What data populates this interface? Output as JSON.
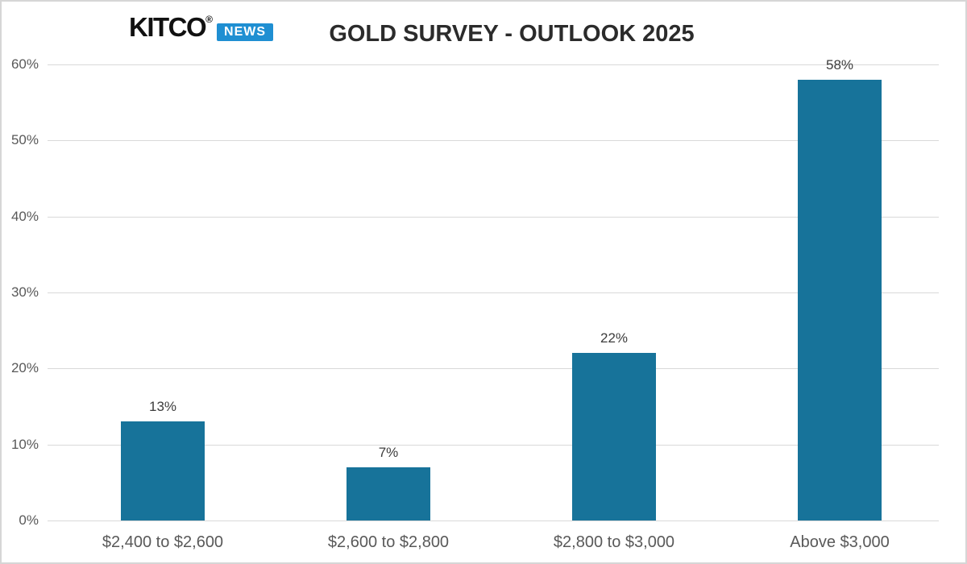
{
  "logo": {
    "brand": "KITCO",
    "registered": "®",
    "news": "NEWS",
    "news_bg": "#1f8fd2",
    "brand_color": "#111111"
  },
  "chart_data": {
    "type": "bar",
    "title": "GOLD SURVEY - OUTLOOK 2025",
    "categories": [
      "$2,400 to $2,600",
      "$2,600 to $2,800",
      "$2,800 to $3,000",
      "Above $3,000"
    ],
    "values": [
      13,
      7,
      22,
      58
    ],
    "data_labels": [
      "13%",
      "7%",
      "22%",
      "58%"
    ],
    "y_ticks": [
      {
        "value": 0,
        "label": "0%"
      },
      {
        "value": 10,
        "label": "10%"
      },
      {
        "value": 20,
        "label": "20%"
      },
      {
        "value": 30,
        "label": "30%"
      },
      {
        "value": 40,
        "label": "40%"
      },
      {
        "value": 50,
        "label": "50%"
      },
      {
        "value": 60,
        "label": "60%"
      }
    ],
    "ylim": [
      0,
      60
    ],
    "xlabel": "",
    "ylabel": "",
    "grid": true,
    "legend": false,
    "bar_color": "#17739a",
    "gridline_color": "#d9d9d9",
    "tick_label_color": "#595959",
    "data_label_color": "#3c3c3c",
    "title_color": "#2b2b2b"
  }
}
